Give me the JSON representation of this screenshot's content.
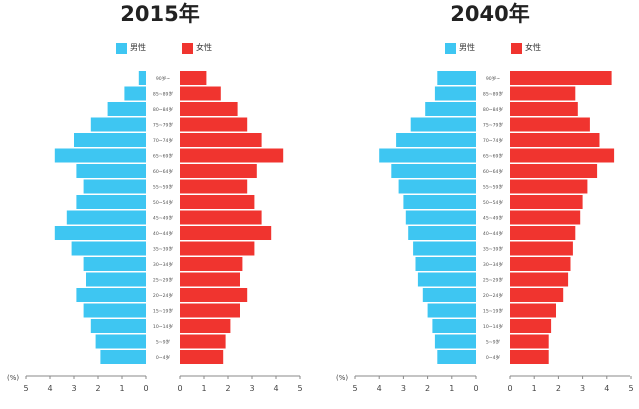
{
  "colors": {
    "male": "#3ec6f2",
    "female": "#f0342f"
  },
  "legend": {
    "male": "男性",
    "female": "女性"
  },
  "axis_unit": "(%)",
  "chart_data": [
    {
      "type": "bar",
      "title": "2015年",
      "categories": [
        "0~4岁",
        "5~9岁",
        "10~14岁",
        "15~19岁",
        "20~24岁",
        "25~29岁",
        "30~34岁",
        "35~39岁",
        "40~44岁",
        "45~49岁",
        "50~54岁",
        "55~59岁",
        "60~64岁",
        "65~69岁",
        "70~74岁",
        "75~79岁",
        "80~84岁",
        "85~89岁",
        "90岁~"
      ],
      "series": [
        {
          "name": "男性",
          "values": [
            1.9,
            2.1,
            2.3,
            2.6,
            2.9,
            2.5,
            2.6,
            3.1,
            3.8,
            3.3,
            2.9,
            2.6,
            2.9,
            3.8,
            3.0,
            2.3,
            1.6,
            0.9,
            0.3
          ]
        },
        {
          "name": "女性",
          "values": [
            1.8,
            1.9,
            2.1,
            2.5,
            2.8,
            2.5,
            2.6,
            3.1,
            3.8,
            3.4,
            3.1,
            2.8,
            3.2,
            4.3,
            3.4,
            2.8,
            2.4,
            1.7,
            1.1
          ]
        }
      ],
      "xlim": [
        -5,
        5
      ],
      "xticks": [
        "5",
        "4",
        "3",
        "2",
        "1",
        "0",
        "1",
        "2",
        "3",
        "4",
        "5"
      ],
      "xlabel": "(%)"
    },
    {
      "type": "bar",
      "title": "2040年",
      "categories": [
        "0~4岁",
        "5~9岁",
        "10~14岁",
        "15~19岁",
        "20~24岁",
        "25~29岁",
        "30~34岁",
        "35~39岁",
        "40~44岁",
        "45~49岁",
        "50~54岁",
        "55~59岁",
        "60~64岁",
        "65~69岁",
        "70~74岁",
        "75~79岁",
        "80~84岁",
        "85~89岁",
        "90岁~"
      ],
      "series": [
        {
          "name": "男性",
          "values": [
            1.6,
            1.7,
            1.8,
            2.0,
            2.2,
            2.4,
            2.5,
            2.6,
            2.8,
            2.9,
            3.0,
            3.2,
            3.5,
            4.0,
            3.3,
            2.7,
            2.1,
            1.7,
            1.6
          ]
        },
        {
          "name": "女性",
          "values": [
            1.6,
            1.6,
            1.7,
            1.9,
            2.2,
            2.4,
            2.5,
            2.6,
            2.7,
            2.9,
            3.0,
            3.2,
            3.6,
            4.3,
            3.7,
            3.3,
            2.8,
            2.7,
            4.2
          ]
        }
      ],
      "xlim": [
        -5,
        5
      ],
      "xticks": [
        "5",
        "4",
        "3",
        "2",
        "1",
        "0",
        "1",
        "2",
        "3",
        "4",
        "5"
      ],
      "xlabel": "(%)"
    }
  ]
}
